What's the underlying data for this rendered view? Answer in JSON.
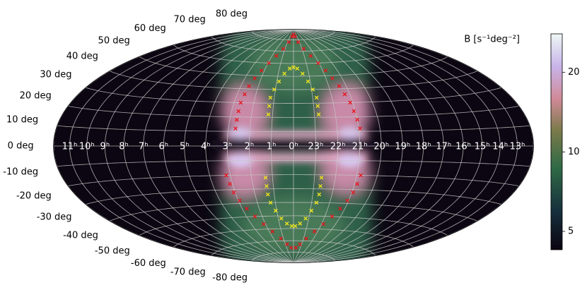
{
  "chart_data": {
    "type": "skymap",
    "projection": "hammer",
    "xticks": [
      {
        "value": 0,
        "label": "0ʰ"
      },
      {
        "value": 1,
        "label": "1ʰ"
      },
      {
        "value": 2,
        "label": "2ʰ"
      },
      {
        "value": 3,
        "label": "3ʰ"
      },
      {
        "value": 4,
        "label": "4ʰ"
      },
      {
        "value": 5,
        "label": "5ʰ"
      },
      {
        "value": 6,
        "label": "6ʰ"
      },
      {
        "value": 7,
        "label": "7ʰ"
      },
      {
        "value": 8,
        "label": "8ʰ"
      },
      {
        "value": 9,
        "label": "9ʰ"
      },
      {
        "value": 10,
        "label": "10ʰ"
      },
      {
        "value": 11,
        "label": "11ʰ"
      },
      {
        "value": 13,
        "label": "13ʰ"
      },
      {
        "value": 14,
        "label": "14ʰ"
      },
      {
        "value": 15,
        "label": "15ʰ"
      },
      {
        "value": 16,
        "label": "16ʰ"
      },
      {
        "value": 17,
        "label": "17ʰ"
      },
      {
        "value": 18,
        "label": "18ʰ"
      },
      {
        "value": 19,
        "label": "19ʰ"
      },
      {
        "value": 20,
        "label": "20ʰ"
      },
      {
        "value": 21,
        "label": "21ʰ"
      },
      {
        "value": 22,
        "label": "22ʰ"
      },
      {
        "value": 23,
        "label": "23ʰ"
      }
    ],
    "yticks": [
      {
        "value": -80,
        "label": "-80 deg"
      },
      {
        "value": -70,
        "label": "-70 deg"
      },
      {
        "value": -60,
        "label": "-60 deg"
      },
      {
        "value": -50,
        "label": "-50 deg"
      },
      {
        "value": -40,
        "label": "-40 deg"
      },
      {
        "value": -30,
        "label": "-30 deg"
      },
      {
        "value": -20,
        "label": "-20 deg"
      },
      {
        "value": -10,
        "label": "-10 deg"
      },
      {
        "value": 0,
        "label": "0 deg"
      },
      {
        "value": 10,
        "label": "10 deg"
      },
      {
        "value": 20,
        "label": "20 deg"
      },
      {
        "value": 30,
        "label": "30 deg"
      },
      {
        "value": 40,
        "label": "40 deg"
      },
      {
        "value": 50,
        "label": "50 deg"
      },
      {
        "value": 60,
        "label": "60 deg"
      },
      {
        "value": 70,
        "label": "70 deg"
      },
      {
        "value": 80,
        "label": "80 deg"
      }
    ],
    "grid": true,
    "series": [
      {
        "color": "#e8141c",
        "marker": "x",
        "x": [
          40,
          40,
          40,
          40,
          39,
          38,
          36,
          33,
          29,
          24,
          18,
          12,
          6,
          0,
          354,
          348,
          342,
          336,
          331,
          327,
          324,
          321,
          319,
          317,
          316,
          315,
          314,
          48,
          47,
          46,
          44,
          41,
          37,
          32,
          26,
          19,
          12,
          5,
          355,
          348,
          341,
          334,
          328,
          323,
          319,
          316,
          314,
          313,
          312
        ],
        "y": [
          12,
          18,
          24,
          30,
          36,
          42,
          48,
          54,
          60,
          66,
          72,
          78,
          83,
          85,
          83,
          78,
          72,
          66,
          60,
          54,
          48,
          42,
          36,
          30,
          24,
          18,
          12,
          -20,
          -26,
          -32,
          -38,
          -44,
          -50,
          -56,
          -62,
          -68,
          -73,
          -76,
          -76,
          -73,
          -68,
          -62,
          -56,
          -50,
          -44,
          -38,
          -32,
          -26,
          -20
        ]
      },
      {
        "color": "#f2e81c",
        "marker": "x",
        "x": [
          18,
          18,
          18,
          16,
          13,
          9,
          4,
          0,
          356,
          351,
          347,
          344,
          342,
          342,
          342,
          20,
          20,
          20,
          19,
          16,
          12,
          7,
          2,
          358,
          353,
          348,
          344,
          341,
          340,
          340,
          340
        ],
        "y": [
          22,
          28,
          34,
          40,
          46,
          52,
          56,
          57,
          56,
          52,
          46,
          40,
          34,
          28,
          22,
          -22,
          -28,
          -34,
          -40,
          -46,
          -52,
          -56,
          -58,
          -58,
          -56,
          -52,
          -46,
          -40,
          -34,
          -28,
          -22
        ]
      }
    ],
    "colorbar": {
      "label": "B [s⁻¹deg⁻²]",
      "log": true,
      "clim": [
        4.26,
        28
      ],
      "ticks": [
        5,
        10,
        20
      ]
    }
  }
}
